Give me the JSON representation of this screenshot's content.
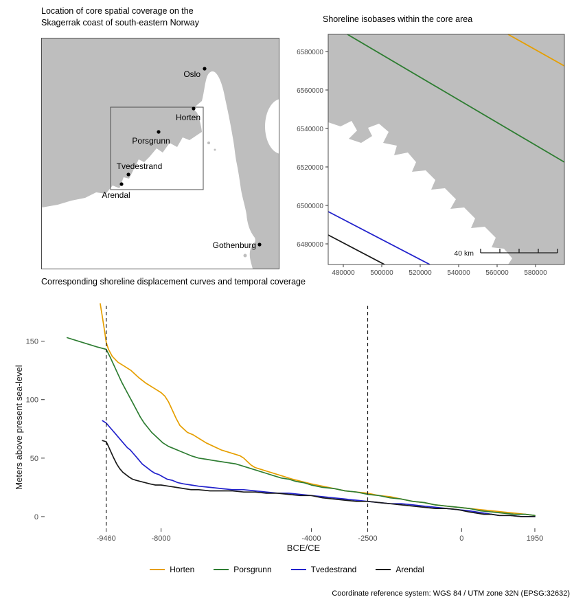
{
  "figure": {
    "caption": "Coordinate reference system: WGS 84 / UTM zone 32N (EPSG:32632)"
  },
  "colors": {
    "land": "#BEBEBE",
    "water": "#FFFFFF",
    "panel_border": "#4D4D4D",
    "tick_text": "#4D4D4D"
  },
  "maps": {
    "overview": {
      "title_line1": "Location of core spatial coverage on the",
      "title_line2": "Skagerrak coast of south-eastern Norway",
      "cities": [
        {
          "label": "Oslo"
        },
        {
          "label": "Horten"
        },
        {
          "label": "Porsgrunn"
        },
        {
          "label": "Tvedestrand"
        },
        {
          "label": "Arendal"
        },
        {
          "label": "Gothenburg"
        }
      ]
    },
    "isobase": {
      "title": "Shoreline isobases within the core area",
      "x_ticks": [
        "480000",
        "500000",
        "520000",
        "540000",
        "560000",
        "580000"
      ],
      "y_ticks": [
        "6580000",
        "6560000",
        "6540000",
        "6520000",
        "6500000",
        "6480000"
      ],
      "scale_bar_label": "40 km",
      "isobases": [
        {
          "name": "Horten",
          "color": "#E69F00"
        },
        {
          "name": "Porsgrunn",
          "color": "#2E7D32"
        },
        {
          "name": "Tvedestrand",
          "color": "#2222CC"
        },
        {
          "name": "Arendal",
          "color": "#1A1A1A"
        }
      ]
    }
  },
  "chart_data": {
    "type": "line",
    "title": "Corresponding shoreline displacement curves and temporal coverage",
    "xlabel": "BCE/CE",
    "ylabel": "Meters above present sea-level",
    "xlim": [
      -11100,
      2700
    ],
    "ylim": [
      -10,
      185
    ],
    "x_ticks": [
      -9460,
      -8000,
      -4000,
      -2500,
      0,
      1950
    ],
    "y_ticks": [
      0,
      50,
      100,
      150
    ],
    "vlines": [
      -9460,
      -2500
    ],
    "grid": false,
    "legend_position": "bottom",
    "series": [
      {
        "name": "Horten",
        "color": "#E69F00",
        "points": [
          [
            -9620,
            182
          ],
          [
            -9560,
            170
          ],
          [
            -9500,
            158
          ],
          [
            -9460,
            149
          ],
          [
            -9400,
            143
          ],
          [
            -9300,
            137
          ],
          [
            -9150,
            132
          ],
          [
            -9000,
            129
          ],
          [
            -8800,
            125
          ],
          [
            -8600,
            119
          ],
          [
            -8400,
            114
          ],
          [
            -8200,
            110
          ],
          [
            -8000,
            106
          ],
          [
            -7900,
            103
          ],
          [
            -7800,
            98
          ],
          [
            -7700,
            91
          ],
          [
            -7600,
            84
          ],
          [
            -7500,
            78
          ],
          [
            -7400,
            75
          ],
          [
            -7300,
            72
          ],
          [
            -7150,
            70
          ],
          [
            -7000,
            67
          ],
          [
            -6800,
            63
          ],
          [
            -6600,
            60
          ],
          [
            -6400,
            57
          ],
          [
            -6200,
            55
          ],
          [
            -6000,
            53
          ],
          [
            -5900,
            52
          ],
          [
            -5800,
            50
          ],
          [
            -5700,
            47
          ],
          [
            -5600,
            44
          ],
          [
            -5500,
            42
          ],
          [
            -5300,
            40
          ],
          [
            -5100,
            38
          ],
          [
            -4900,
            36
          ],
          [
            -4700,
            34
          ],
          [
            -4500,
            32
          ],
          [
            -4250,
            30
          ],
          [
            -4000,
            28
          ],
          [
            -3700,
            26
          ],
          [
            -3400,
            24
          ],
          [
            -3100,
            22
          ],
          [
            -2800,
            21
          ],
          [
            -2500,
            20
          ],
          [
            -2200,
            18
          ],
          [
            -1900,
            17
          ],
          [
            -1600,
            15
          ],
          [
            -1300,
            13
          ],
          [
            -1000,
            12
          ],
          [
            -700,
            10
          ],
          [
            -400,
            9
          ],
          [
            -100,
            8
          ],
          [
            200,
            7
          ],
          [
            500,
            6
          ],
          [
            800,
            5
          ],
          [
            1100,
            4
          ],
          [
            1400,
            3
          ],
          [
            1700,
            2
          ],
          [
            1950,
            1
          ]
        ]
      },
      {
        "name": "Porsgrunn",
        "color": "#2E7D32",
        "points": [
          [
            -10500,
            153
          ],
          [
            -10300,
            151
          ],
          [
            -10100,
            149
          ],
          [
            -9900,
            147
          ],
          [
            -9700,
            145
          ],
          [
            -9460,
            143
          ],
          [
            -9350,
            136
          ],
          [
            -9250,
            129
          ],
          [
            -9150,
            122
          ],
          [
            -9050,
            115
          ],
          [
            -8950,
            109
          ],
          [
            -8850,
            103
          ],
          [
            -8750,
            97
          ],
          [
            -8650,
            91
          ],
          [
            -8550,
            85
          ],
          [
            -8450,
            80
          ],
          [
            -8350,
            76
          ],
          [
            -8250,
            72
          ],
          [
            -8150,
            69
          ],
          [
            -8050,
            66
          ],
          [
            -7950,
            63
          ],
          [
            -7800,
            60
          ],
          [
            -7650,
            58
          ],
          [
            -7500,
            56
          ],
          [
            -7350,
            54
          ],
          [
            -7200,
            52
          ],
          [
            -7000,
            50
          ],
          [
            -6800,
            49
          ],
          [
            -6600,
            48
          ],
          [
            -6400,
            47
          ],
          [
            -6200,
            46
          ],
          [
            -6000,
            45
          ],
          [
            -5800,
            43
          ],
          [
            -5600,
            41
          ],
          [
            -5400,
            39
          ],
          [
            -5200,
            37
          ],
          [
            -5000,
            35
          ],
          [
            -4800,
            33
          ],
          [
            -4600,
            32
          ],
          [
            -4400,
            30
          ],
          [
            -4200,
            29
          ],
          [
            -4000,
            27
          ],
          [
            -3700,
            25
          ],
          [
            -3400,
            24
          ],
          [
            -3100,
            22
          ],
          [
            -2800,
            21
          ],
          [
            -2500,
            19
          ],
          [
            -2200,
            18
          ],
          [
            -1900,
            16
          ],
          [
            -1600,
            15
          ],
          [
            -1300,
            13
          ],
          [
            -1000,
            12
          ],
          [
            -700,
            10
          ],
          [
            -400,
            9
          ],
          [
            -100,
            8
          ],
          [
            200,
            7
          ],
          [
            500,
            5
          ],
          [
            800,
            4
          ],
          [
            1100,
            3
          ],
          [
            1400,
            2
          ],
          [
            1700,
            2
          ],
          [
            1950,
            1
          ]
        ]
      },
      {
        "name": "Tvedestrand",
        "color": "#2222CC",
        "points": [
          [
            -9560,
            82
          ],
          [
            -9460,
            80
          ],
          [
            -9380,
            77
          ],
          [
            -9300,
            74
          ],
          [
            -9220,
            71
          ],
          [
            -9140,
            68
          ],
          [
            -9060,
            65
          ],
          [
            -8980,
            62
          ],
          [
            -8900,
            59
          ],
          [
            -8820,
            57
          ],
          [
            -8740,
            54
          ],
          [
            -8660,
            51
          ],
          [
            -8580,
            48
          ],
          [
            -8500,
            45
          ],
          [
            -8420,
            43
          ],
          [
            -8340,
            41
          ],
          [
            -8260,
            39
          ],
          [
            -8160,
            37
          ],
          [
            -8060,
            36
          ],
          [
            -7950,
            34
          ],
          [
            -7840,
            32
          ],
          [
            -7700,
            31
          ],
          [
            -7550,
            29
          ],
          [
            -7400,
            28
          ],
          [
            -7200,
            27
          ],
          [
            -7000,
            26
          ],
          [
            -6700,
            25
          ],
          [
            -6400,
            24
          ],
          [
            -6100,
            23
          ],
          [
            -5800,
            23
          ],
          [
            -5500,
            22
          ],
          [
            -5200,
            21
          ],
          [
            -4900,
            20
          ],
          [
            -4600,
            20
          ],
          [
            -4300,
            19
          ],
          [
            -4000,
            18
          ],
          [
            -3700,
            17
          ],
          [
            -3400,
            16
          ],
          [
            -3100,
            15
          ],
          [
            -2800,
            14
          ],
          [
            -2500,
            13
          ],
          [
            -2200,
            12
          ],
          [
            -1900,
            11
          ],
          [
            -1600,
            11
          ],
          [
            -1300,
            10
          ],
          [
            -1000,
            9
          ],
          [
            -700,
            8
          ],
          [
            -400,
            7
          ],
          [
            -100,
            6
          ],
          [
            200,
            5
          ],
          [
            400,
            4
          ],
          [
            600,
            3
          ],
          [
            800,
            2
          ],
          [
            1000,
            1
          ],
          [
            1300,
            1
          ],
          [
            1600,
            0
          ],
          [
            1950,
            0
          ]
        ]
      },
      {
        "name": "Arendal",
        "color": "#1A1A1A",
        "points": [
          [
            -9560,
            65
          ],
          [
            -9460,
            64
          ],
          [
            -9400,
            60
          ],
          [
            -9330,
            55
          ],
          [
            -9260,
            50
          ],
          [
            -9180,
            45
          ],
          [
            -9100,
            41
          ],
          [
            -9020,
            38
          ],
          [
            -8940,
            36
          ],
          [
            -8860,
            34
          ],
          [
            -8760,
            32
          ],
          [
            -8660,
            31
          ],
          [
            -8540,
            30
          ],
          [
            -8420,
            29
          ],
          [
            -8300,
            28
          ],
          [
            -8150,
            27
          ],
          [
            -8000,
            27
          ],
          [
            -7800,
            26
          ],
          [
            -7600,
            25
          ],
          [
            -7400,
            24
          ],
          [
            -7200,
            23
          ],
          [
            -7000,
            23
          ],
          [
            -6700,
            22
          ],
          [
            -6400,
            22
          ],
          [
            -6100,
            22
          ],
          [
            -5800,
            21
          ],
          [
            -5500,
            21
          ],
          [
            -5200,
            20
          ],
          [
            -4900,
            20
          ],
          [
            -4600,
            19
          ],
          [
            -4300,
            18
          ],
          [
            -4000,
            18
          ],
          [
            -3700,
            16
          ],
          [
            -3400,
            15
          ],
          [
            -3100,
            14
          ],
          [
            -2800,
            13
          ],
          [
            -2500,
            13
          ],
          [
            -2200,
            12
          ],
          [
            -1900,
            11
          ],
          [
            -1600,
            10
          ],
          [
            -1300,
            9
          ],
          [
            -1000,
            8
          ],
          [
            -700,
            7
          ],
          [
            -400,
            7
          ],
          [
            -100,
            6
          ],
          [
            200,
            4
          ],
          [
            400,
            3
          ],
          [
            600,
            2
          ],
          [
            800,
            2
          ],
          [
            1000,
            1
          ],
          [
            1300,
            1
          ],
          [
            1600,
            0
          ],
          [
            1950,
            0
          ]
        ]
      }
    ]
  }
}
